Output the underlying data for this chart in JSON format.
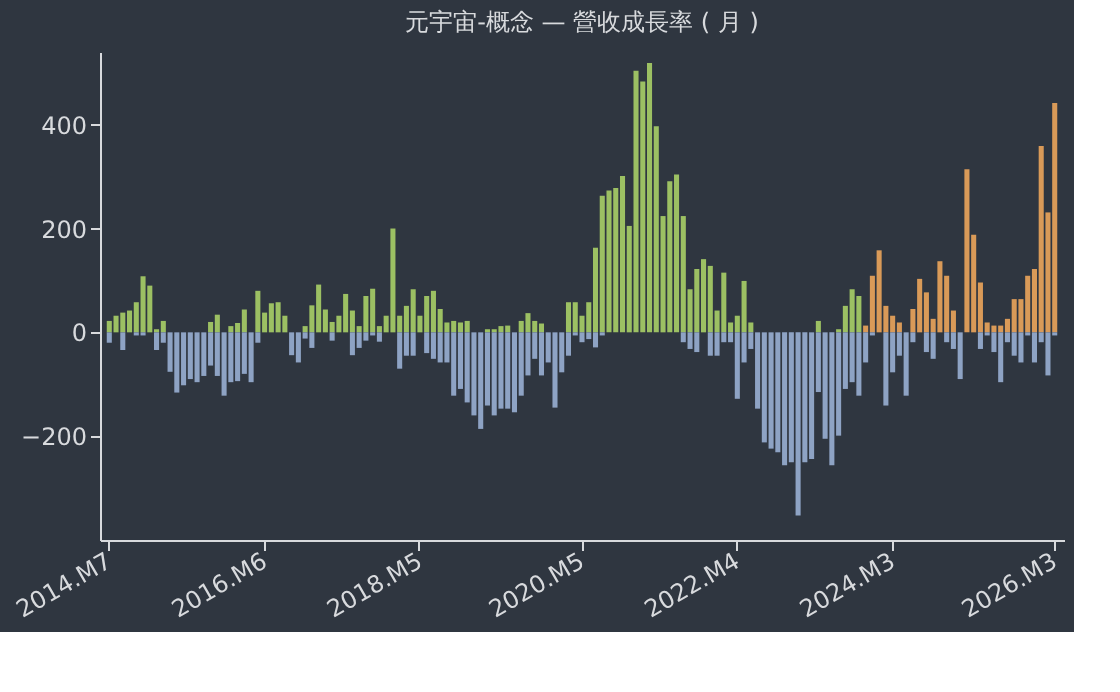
{
  "chart_data": {
    "type": "bar",
    "title": "元宇宙-概念 — 營收成長率 ( 月 )",
    "categories": [
      "2014.M7",
      null,
      null,
      null,
      null,
      null,
      null,
      null,
      null,
      null,
      null,
      null,
      null,
      null,
      null,
      null,
      null,
      null,
      null,
      null,
      null,
      null,
      null,
      "2016.M6",
      null,
      null,
      null,
      null,
      null,
      null,
      null,
      null,
      null,
      null,
      null,
      null,
      null,
      null,
      null,
      null,
      null,
      null,
      null,
      null,
      null,
      null,
      "2018.M5",
      null,
      null,
      null,
      null,
      null,
      null,
      null,
      null,
      null,
      null,
      null,
      null,
      null,
      null,
      null,
      null,
      null,
      null,
      null,
      null,
      null,
      null,
      null,
      "2020.M5",
      null,
      null,
      null,
      null,
      null,
      null,
      null,
      null,
      null,
      null,
      null,
      null,
      null,
      null,
      null,
      null,
      null,
      null,
      null,
      null,
      null,
      null,
      "2022.M4",
      null,
      null,
      null,
      null,
      null,
      null,
      null,
      null,
      null,
      null,
      null,
      null,
      null,
      null,
      null,
      null,
      null,
      null,
      null,
      null,
      null,
      null,
      "2024.M3",
      null,
      null,
      null,
      null,
      null,
      null,
      null,
      null,
      null,
      null,
      null,
      null,
      null,
      null,
      null,
      null,
      null,
      null,
      null,
      null,
      null,
      null,
      null,
      "2026.M3"
    ],
    "series": [
      {
        "color": "#9cc063",
        "values": [
          22,
          32,
          38,
          42,
          58,
          108,
          90,
          6,
          22,
          null,
          null,
          null,
          null,
          null,
          null,
          20,
          34,
          null,
          12,
          18,
          44,
          null,
          80,
          38,
          56,
          58,
          32,
          null,
          null,
          12,
          52,
          92,
          44,
          20,
          32,
          74,
          42,
          12,
          70,
          84,
          12,
          32,
          200,
          32,
          51,
          83,
          32,
          70,
          80,
          45,
          19,
          22,
          19,
          22,
          null,
          null,
          6,
          6,
          12,
          13,
          null,
          22,
          37,
          22,
          17,
          null,
          null,
          null,
          58,
          58,
          32,
          58,
          163,
          263,
          273,
          278,
          301,
          205,
          504,
          483,
          519,
          397,
          224,
          291,
          304,
          224,
          83,
          122,
          141,
          128,
          42,
          115,
          19,
          32,
          99,
          19,
          null,
          null,
          null,
          null,
          null,
          null,
          null,
          null,
          null,
          22,
          null,
          null,
          6,
          51,
          83,
          70,
          null,
          null,
          null,
          null,
          null,
          null,
          null,
          null,
          null,
          null,
          null,
          null,
          null,
          null,
          null,
          null,
          null,
          null,
          null,
          null,
          null,
          null,
          null,
          null,
          null,
          null,
          null,
          null,
          null
        ]
      },
      {
        "color": "#d99a58",
        "values": [
          null,
          null,
          null,
          null,
          null,
          null,
          null,
          null,
          null,
          null,
          null,
          null,
          null,
          null,
          null,
          null,
          null,
          null,
          null,
          null,
          null,
          null,
          null,
          null,
          null,
          null,
          null,
          null,
          null,
          null,
          null,
          null,
          null,
          null,
          null,
          null,
          null,
          null,
          null,
          null,
          null,
          null,
          null,
          null,
          null,
          null,
          null,
          null,
          null,
          null,
          null,
          null,
          null,
          null,
          null,
          null,
          null,
          null,
          null,
          null,
          null,
          null,
          null,
          null,
          null,
          null,
          null,
          null,
          null,
          null,
          null,
          null,
          null,
          null,
          null,
          null,
          null,
          null,
          null,
          null,
          null,
          null,
          null,
          null,
          null,
          null,
          null,
          null,
          null,
          null,
          null,
          null,
          null,
          null,
          null,
          null,
          null,
          null,
          null,
          null,
          null,
          null,
          null,
          null,
          null,
          null,
          null,
          null,
          null,
          null,
          null,
          null,
          13,
          109,
          158,
          51,
          32,
          19,
          null,
          45,
          103,
          77,
          26,
          137,
          109,
          42,
          null,
          314,
          188,
          96,
          19,
          13,
          13,
          26,
          64,
          64,
          109,
          122,
          359,
          231,
          442
        ]
      },
      {
        "color": "#8ea3c4",
        "values": [
          -20,
          null,
          -34,
          null,
          -6,
          -6,
          null,
          -34,
          -20,
          -76,
          -116,
          -102,
          -90,
          -96,
          -84,
          -64,
          -84,
          -122,
          -96,
          -94,
          -80,
          -96,
          -20,
          null,
          null,
          null,
          null,
          -44,
          -58,
          -12,
          -30,
          null,
          null,
          -16,
          null,
          null,
          -44,
          -30,
          -16,
          -6,
          -18,
          null,
          null,
          -70,
          -45,
          -45,
          null,
          -40,
          -51,
          -58,
          -58,
          -122,
          -109,
          -135,
          -160,
          -186,
          -141,
          -160,
          -147,
          -147,
          -154,
          -122,
          -83,
          -51,
          -83,
          -58,
          -145,
          -77,
          -45,
          -6,
          -19,
          -13,
          -29,
          -6,
          null,
          null,
          null,
          null,
          null,
          null,
          null,
          null,
          null,
          null,
          null,
          -19,
          -32,
          -38,
          null,
          -45,
          -45,
          -19,
          -19,
          -128,
          -58,
          -32,
          -147,
          -212,
          -224,
          -231,
          -256,
          -250,
          -353,
          -250,
          -244,
          -115,
          -205,
          -256,
          -199,
          -109,
          -96,
          -122,
          -58,
          -6,
          null,
          -141,
          -77,
          -45,
          -122,
          -19,
          null,
          -38,
          -51,
          null,
          -19,
          -32,
          -90,
          null,
          null,
          -32,
          -6,
          -38,
          -96,
          -19,
          -45,
          -58,
          -6,
          -58,
          -19,
          -83,
          -6
        ]
      }
    ],
    "ylim": [
      -400,
      540
    ],
    "yticks": [
      {
        "value": -200,
        "label": "−200"
      },
      0,
      200,
      400
    ],
    "grid": false,
    "legend": false
  }
}
